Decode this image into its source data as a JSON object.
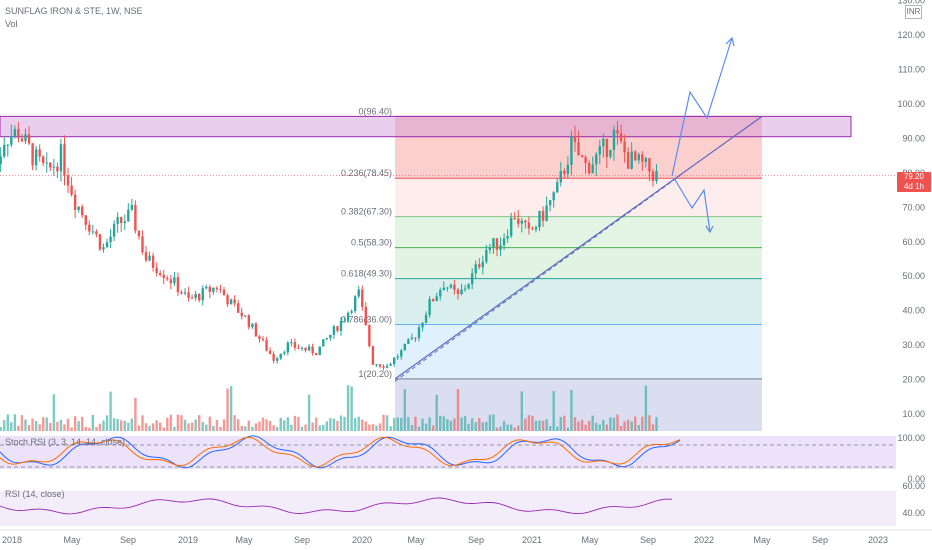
{
  "header": {
    "symbol_line": "SUNFLAG IRON & STE, 1W, NSE",
    "volume_label": "Vol",
    "currency": "INR"
  },
  "price_tag": {
    "price": "79.20",
    "countdown": "4d 1h",
    "color": "#ef5350"
  },
  "price_axis": {
    "ticks": [
      "130.00",
      "120.00",
      "110.00",
      "100.00",
      "90.00",
      "80.00",
      "70.00",
      "60.00",
      "50.00",
      "40.00",
      "30.00",
      "20.00",
      "10.00"
    ]
  },
  "time_axis": {
    "ticks": [
      "2018",
      "May",
      "Sep",
      "2019",
      "May",
      "Sep",
      "2020",
      "May",
      "Sep",
      "2021",
      "May",
      "Sep",
      "2022",
      "May",
      "Sep",
      "2023"
    ]
  },
  "fib_levels": [
    {
      "label": "0(96.40)",
      "price": 96.4,
      "color": "#e57373"
    },
    {
      "label": "0.236(78.45)",
      "price": 78.45,
      "color": "#ef5350"
    },
    {
      "label": "0.382(67.30)",
      "price": 67.3,
      "color": "#81c784"
    },
    {
      "label": "0.5(58.30)",
      "price": 58.3,
      "color": "#4caf50"
    },
    {
      "label": "0.618(49.30)",
      "price": 49.3,
      "color": "#26a69a"
    },
    {
      "label": "0.786(36.00)",
      "price": 36.0,
      "color": "#64b5f6"
    },
    {
      "label": "1(20.20)",
      "price": 20.2,
      "color": "#787b86"
    }
  ],
  "indicators": {
    "stoch": {
      "label": "Stoch RSI (3, 3, 14, 14, close)",
      "axis": [
        "100.00",
        "0.00"
      ]
    },
    "rsi": {
      "label": "RSI (14, close)",
      "axis": [
        "60.00",
        "40.00"
      ]
    }
  },
  "chart_data": {
    "type": "candlestick",
    "title": "SUNFLAG IRON & STE, 1W, NSE",
    "ylim": [
      0,
      130
    ],
    "resistance_zone": [
      90.5,
      96.4
    ],
    "current_price": 79.2,
    "path_points": [
      {
        "date": "2017-12",
        "price": 75
      },
      {
        "date": "2018-01",
        "price": 90
      },
      {
        "date": "2018-02",
        "price": 92
      },
      {
        "date": "2018-03",
        "price": 85
      },
      {
        "date": "2018-04",
        "price": 80
      },
      {
        "date": "2018-05",
        "price": 85
      },
      {
        "date": "2018-06",
        "price": 72
      },
      {
        "date": "2018-07",
        "price": 65
      },
      {
        "date": "2018-08",
        "price": 58
      },
      {
        "date": "2018-09",
        "price": 65
      },
      {
        "date": "2018-10",
        "price": 68
      },
      {
        "date": "2018-11",
        "price": 55
      },
      {
        "date": "2018-12",
        "price": 52
      },
      {
        "date": "2019-01",
        "price": 48
      },
      {
        "date": "2019-02",
        "price": 43
      },
      {
        "date": "2019-03",
        "price": 45
      },
      {
        "date": "2019-04",
        "price": 47
      },
      {
        "date": "2019-05",
        "price": 42
      },
      {
        "date": "2019-06",
        "price": 38
      },
      {
        "date": "2019-07",
        "price": 32
      },
      {
        "date": "2019-08",
        "price": 26
      },
      {
        "date": "2019-09",
        "price": 30
      },
      {
        "date": "2019-10",
        "price": 29
      },
      {
        "date": "2019-11",
        "price": 28
      },
      {
        "date": "2019-12",
        "price": 33
      },
      {
        "date": "2020-01",
        "price": 38
      },
      {
        "date": "2020-02",
        "price": 45
      },
      {
        "date": "2020-03",
        "price": 25
      },
      {
        "date": "2020-04",
        "price": 24
      },
      {
        "date": "2020-05",
        "price": 28
      },
      {
        "date": "2020-06",
        "price": 33
      },
      {
        "date": "2020-07",
        "price": 42
      },
      {
        "date": "2020-08",
        "price": 48
      },
      {
        "date": "2020-09",
        "price": 44
      },
      {
        "date": "2020-10",
        "price": 50
      },
      {
        "date": "2020-11",
        "price": 58
      },
      {
        "date": "2020-12",
        "price": 60
      },
      {
        "date": "2021-01",
        "price": 68
      },
      {
        "date": "2021-02",
        "price": 62
      },
      {
        "date": "2021-03",
        "price": 68
      },
      {
        "date": "2021-04",
        "price": 75
      },
      {
        "date": "2021-05",
        "price": 88
      },
      {
        "date": "2021-06",
        "price": 82
      },
      {
        "date": "2021-07",
        "price": 85
      },
      {
        "date": "2021-08",
        "price": 91
      },
      {
        "date": "2021-09",
        "price": 84
      },
      {
        "date": "2021-10",
        "price": 82
      },
      {
        "date": "2021-11",
        "price": 79.2
      }
    ]
  }
}
